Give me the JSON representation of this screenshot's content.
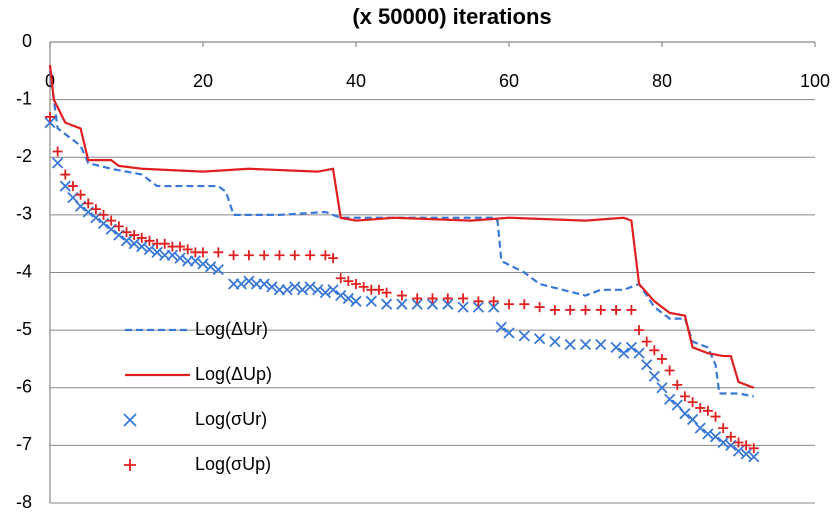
{
  "chart_data": {
    "type": "line",
    "title": "(x 50000) iterations",
    "xlim": [
      0,
      100
    ],
    "xticks": [
      0,
      20,
      40,
      60,
      80,
      100
    ],
    "ylim": [
      -8,
      0
    ],
    "yticks": [
      -8,
      -7,
      -6,
      -5,
      -4,
      -3,
      -2,
      -1,
      0
    ],
    "grid": true,
    "legend": "lower left",
    "series": [
      {
        "name": "Log(ΔUr)",
        "type": "line",
        "style": "dashed",
        "color": "#3a78d8",
        "x": [
          0,
          1,
          4,
          5,
          8,
          12,
          14,
          22,
          23,
          24,
          30,
          36,
          38,
          45,
          58,
          58.5,
          59,
          62,
          64,
          67,
          70,
          72,
          75,
          77,
          79,
          81,
          83,
          84,
          86,
          87,
          87.5,
          90,
          92
        ],
        "values": [
          -0.5,
          -1.5,
          -1.8,
          -2.1,
          -2.2,
          -2.3,
          -2.5,
          -2.5,
          -2.6,
          -3.0,
          -3.0,
          -2.95,
          -3.05,
          -3.05,
          -3.05,
          -3.1,
          -3.8,
          -4.0,
          -4.2,
          -4.3,
          -4.4,
          -4.3,
          -4.3,
          -4.2,
          -4.6,
          -4.8,
          -4.8,
          -5.2,
          -5.3,
          -5.6,
          -6.1,
          -6.1,
          -6.15
        ]
      },
      {
        "name": "Log(ΔUp)",
        "type": "line",
        "style": "solid",
        "color": "#e02020",
        "x": [
          0,
          0.5,
          2,
          4,
          5,
          8,
          9,
          12,
          20,
          26,
          35,
          37,
          38,
          40,
          45,
          55,
          60,
          70,
          75,
          76,
          77,
          79,
          81,
          83,
          84,
          86,
          88,
          89,
          90,
          92
        ],
        "values": [
          -0.4,
          -1.0,
          -1.4,
          -1.5,
          -2.05,
          -2.05,
          -2.15,
          -2.2,
          -2.25,
          -2.2,
          -2.25,
          -2.2,
          -3.05,
          -3.1,
          -3.05,
          -3.1,
          -3.05,
          -3.1,
          -3.05,
          -3.1,
          -4.2,
          -4.5,
          -4.7,
          -4.75,
          -5.3,
          -5.4,
          -5.45,
          -5.45,
          -5.9,
          -6.0
        ]
      },
      {
        "name": "Log(σUr)",
        "type": "scatter",
        "marker": "x",
        "color": "#3a78d8",
        "x": [
          0,
          1,
          2,
          3,
          4,
          5,
          6,
          7,
          8,
          9,
          10,
          11,
          12,
          13,
          14,
          15,
          16,
          17,
          18,
          19,
          20,
          21,
          22,
          24,
          25,
          26,
          27,
          28,
          29,
          30,
          31,
          32,
          33,
          34,
          35,
          36,
          37,
          38,
          39,
          40,
          42,
          44,
          46,
          48,
          50,
          52,
          54,
          56,
          58,
          59,
          60,
          62,
          64,
          66,
          68,
          70,
          72,
          74,
          75,
          76,
          77,
          78,
          79,
          80,
          81,
          82,
          83,
          84,
          85,
          86,
          87,
          88,
          89,
          90,
          91,
          92
        ],
        "values": [
          -1.4,
          -2.1,
          -2.5,
          -2.7,
          -2.85,
          -2.95,
          -3.05,
          -3.15,
          -3.25,
          -3.35,
          -3.45,
          -3.5,
          -3.55,
          -3.6,
          -3.65,
          -3.7,
          -3.7,
          -3.75,
          -3.8,
          -3.8,
          -3.85,
          -3.9,
          -3.95,
          -4.2,
          -4.2,
          -4.15,
          -4.2,
          -4.2,
          -4.25,
          -4.3,
          -4.3,
          -4.25,
          -4.3,
          -4.25,
          -4.3,
          -4.35,
          -4.3,
          -4.4,
          -4.45,
          -4.5,
          -4.5,
          -4.55,
          -4.55,
          -4.55,
          -4.55,
          -4.55,
          -4.6,
          -4.6,
          -4.6,
          -4.95,
          -5.05,
          -5.1,
          -5.15,
          -5.2,
          -5.25,
          -5.25,
          -5.25,
          -5.3,
          -5.4,
          -5.3,
          -5.4,
          -5.6,
          -5.8,
          -6.0,
          -6.2,
          -6.3,
          -6.45,
          -6.55,
          -6.7,
          -6.8,
          -6.85,
          -6.95,
          -7.0,
          -7.1,
          -7.15,
          -7.2
        ]
      },
      {
        "name": "Log(σUp)",
        "type": "scatter",
        "marker": "+",
        "color": "#e02020",
        "x": [
          0,
          1,
          2,
          3,
          4,
          5,
          6,
          7,
          8,
          9,
          10,
          11,
          12,
          13,
          14,
          15,
          16,
          17,
          18,
          19,
          20,
          22,
          24,
          26,
          28,
          30,
          32,
          34,
          36,
          37,
          38,
          39,
          40,
          41,
          42,
          43,
          44,
          46,
          48,
          50,
          52,
          54,
          56,
          58,
          60,
          62,
          64,
          66,
          68,
          70,
          72,
          74,
          76,
          77,
          78,
          79,
          80,
          81,
          82,
          83,
          84,
          85,
          86,
          87,
          88,
          89,
          90,
          91,
          92
        ],
        "values": [
          -1.3,
          -1.9,
          -2.3,
          -2.5,
          -2.65,
          -2.8,
          -2.9,
          -3.0,
          -3.1,
          -3.2,
          -3.3,
          -3.35,
          -3.4,
          -3.45,
          -3.5,
          -3.5,
          -3.55,
          -3.55,
          -3.6,
          -3.65,
          -3.65,
          -3.65,
          -3.7,
          -3.7,
          -3.7,
          -3.7,
          -3.7,
          -3.7,
          -3.7,
          -3.75,
          -4.1,
          -4.15,
          -4.2,
          -4.25,
          -4.3,
          -4.3,
          -4.35,
          -4.4,
          -4.45,
          -4.45,
          -4.45,
          -4.45,
          -4.5,
          -4.5,
          -4.55,
          -4.55,
          -4.6,
          -4.65,
          -4.65,
          -4.65,
          -4.65,
          -4.65,
          -4.65,
          -5.0,
          -5.2,
          -5.35,
          -5.5,
          -5.7,
          -5.95,
          -6.15,
          -6.25,
          -6.35,
          -6.4,
          -6.5,
          -6.7,
          -6.85,
          -6.95,
          -7.0,
          -7.05
        ]
      }
    ]
  }
}
